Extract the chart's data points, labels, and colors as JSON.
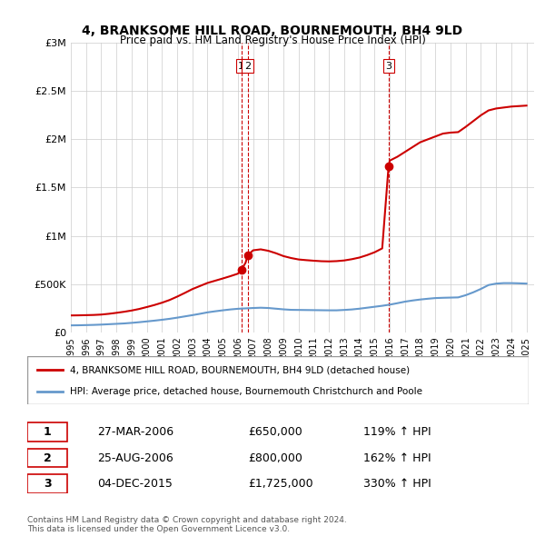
{
  "title": "4, BRANKSOME HILL ROAD, BOURNEMOUTH, BH4 9LD",
  "subtitle": "Price paid vs. HM Land Registry's House Price Index (HPI)",
  "ylim": [
    0,
    3000000
  ],
  "yticks": [
    0,
    500000,
    1000000,
    1500000,
    2000000,
    2500000,
    3000000
  ],
  "ytick_labels": [
    "£0",
    "£500K",
    "£1M",
    "£1.5M",
    "£2M",
    "£2.5M",
    "£3M"
  ],
  "x_start_year": 1995,
  "x_end_year": 2025,
  "hpi_color": "#6699cc",
  "price_color": "#cc0000",
  "sale_marker_color": "#cc0000",
  "dashed_line_color": "#cc0000",
  "sale_dates": [
    2006.23,
    2006.65,
    2015.92
  ],
  "sale_prices": [
    650000,
    800000,
    1725000
  ],
  "sale_labels": [
    "1",
    "2",
    "3"
  ],
  "table_rows": [
    [
      "1",
      "27-MAR-2006",
      "£650,000",
      "119% ↑ HPI"
    ],
    [
      "2",
      "25-AUG-2006",
      "£800,000",
      "162% ↑ HPI"
    ],
    [
      "3",
      "04-DEC-2015",
      "£1,725,000",
      "330% ↑ HPI"
    ]
  ],
  "legend_label_red": "4, BRANKSOME HILL ROAD, BOURNEMOUTH, BH4 9LD (detached house)",
  "legend_label_blue": "HPI: Average price, detached house, Bournemouth Christchurch and Poole",
  "footer": "Contains HM Land Registry data © Crown copyright and database right 2024.\nThis data is licensed under the Open Government Licence v3.0.",
  "hpi_x": [
    1995,
    1995.5,
    1996,
    1996.5,
    1997,
    1997.5,
    1998,
    1998.5,
    1999,
    1999.5,
    2000,
    2000.5,
    2001,
    2001.5,
    2002,
    2002.5,
    2003,
    2003.5,
    2004,
    2004.5,
    2005,
    2005.5,
    2006,
    2006.5,
    2007,
    2007.5,
    2008,
    2008.5,
    2009,
    2009.5,
    2010,
    2010.5,
    2011,
    2011.5,
    2012,
    2012.5,
    2013,
    2013.5,
    2014,
    2014.5,
    2015,
    2015.5,
    2016,
    2016.5,
    2017,
    2017.5,
    2018,
    2018.5,
    2019,
    2019.5,
    2020,
    2020.5,
    2021,
    2021.5,
    2022,
    2022.5,
    2023,
    2023.5,
    2024,
    2024.5,
    2025
  ],
  "hpi_y": [
    72000,
    73000,
    75000,
    77000,
    80000,
    84000,
    88000,
    92000,
    98000,
    105000,
    113000,
    121000,
    130000,
    140000,
    152000,
    165000,
    178000,
    192000,
    207000,
    218000,
    228000,
    237000,
    244000,
    248000,
    252000,
    255000,
    252000,
    245000,
    238000,
    233000,
    232000,
    231000,
    230000,
    229000,
    228000,
    228000,
    232000,
    237000,
    245000,
    255000,
    265000,
    275000,
    287000,
    302000,
    318000,
    330000,
    340000,
    348000,
    355000,
    358000,
    360000,
    362000,
    385000,
    415000,
    450000,
    490000,
    505000,
    510000,
    510000,
    508000,
    505000
  ],
  "price_x": [
    1995,
    1995.5,
    1996,
    1996.5,
    1997,
    1997.5,
    1998,
    1998.5,
    1999,
    1999.5,
    2000,
    2000.5,
    2001,
    2001.5,
    2002,
    2002.5,
    2003,
    2003.5,
    2004,
    2004.5,
    2005,
    2005.5,
    2006,
    2006.23,
    2006.5,
    2006.65,
    2007,
    2007.5,
    2008,
    2008.5,
    2009,
    2009.5,
    2010,
    2010.5,
    2011,
    2011.5,
    2012,
    2012.5,
    2013,
    2013.5,
    2014,
    2014.5,
    2015,
    2015.5,
    2015.92,
    2016,
    2016.5,
    2017,
    2017.5,
    2018,
    2018.5,
    2019,
    2019.5,
    2020,
    2020.5,
    2021,
    2021.5,
    2022,
    2022.5,
    2023,
    2023.5,
    2024,
    2024.5,
    2025
  ],
  "price_y": [
    175000,
    176000,
    178000,
    180000,
    184000,
    192000,
    202000,
    213000,
    226000,
    242000,
    262000,
    283000,
    307000,
    335000,
    370000,
    408000,
    448000,
    480000,
    512000,
    535000,
    558000,
    582000,
    608000,
    650000,
    720000,
    800000,
    850000,
    860000,
    845000,
    820000,
    790000,
    770000,
    755000,
    748000,
    742000,
    737000,
    735000,
    738000,
    745000,
    758000,
    775000,
    800000,
    830000,
    870000,
    1725000,
    1780000,
    1820000,
    1870000,
    1920000,
    1970000,
    2000000,
    2030000,
    2060000,
    2070000,
    2075000,
    2130000,
    2190000,
    2250000,
    2300000,
    2320000,
    2330000,
    2340000,
    2345000,
    2350000
  ]
}
